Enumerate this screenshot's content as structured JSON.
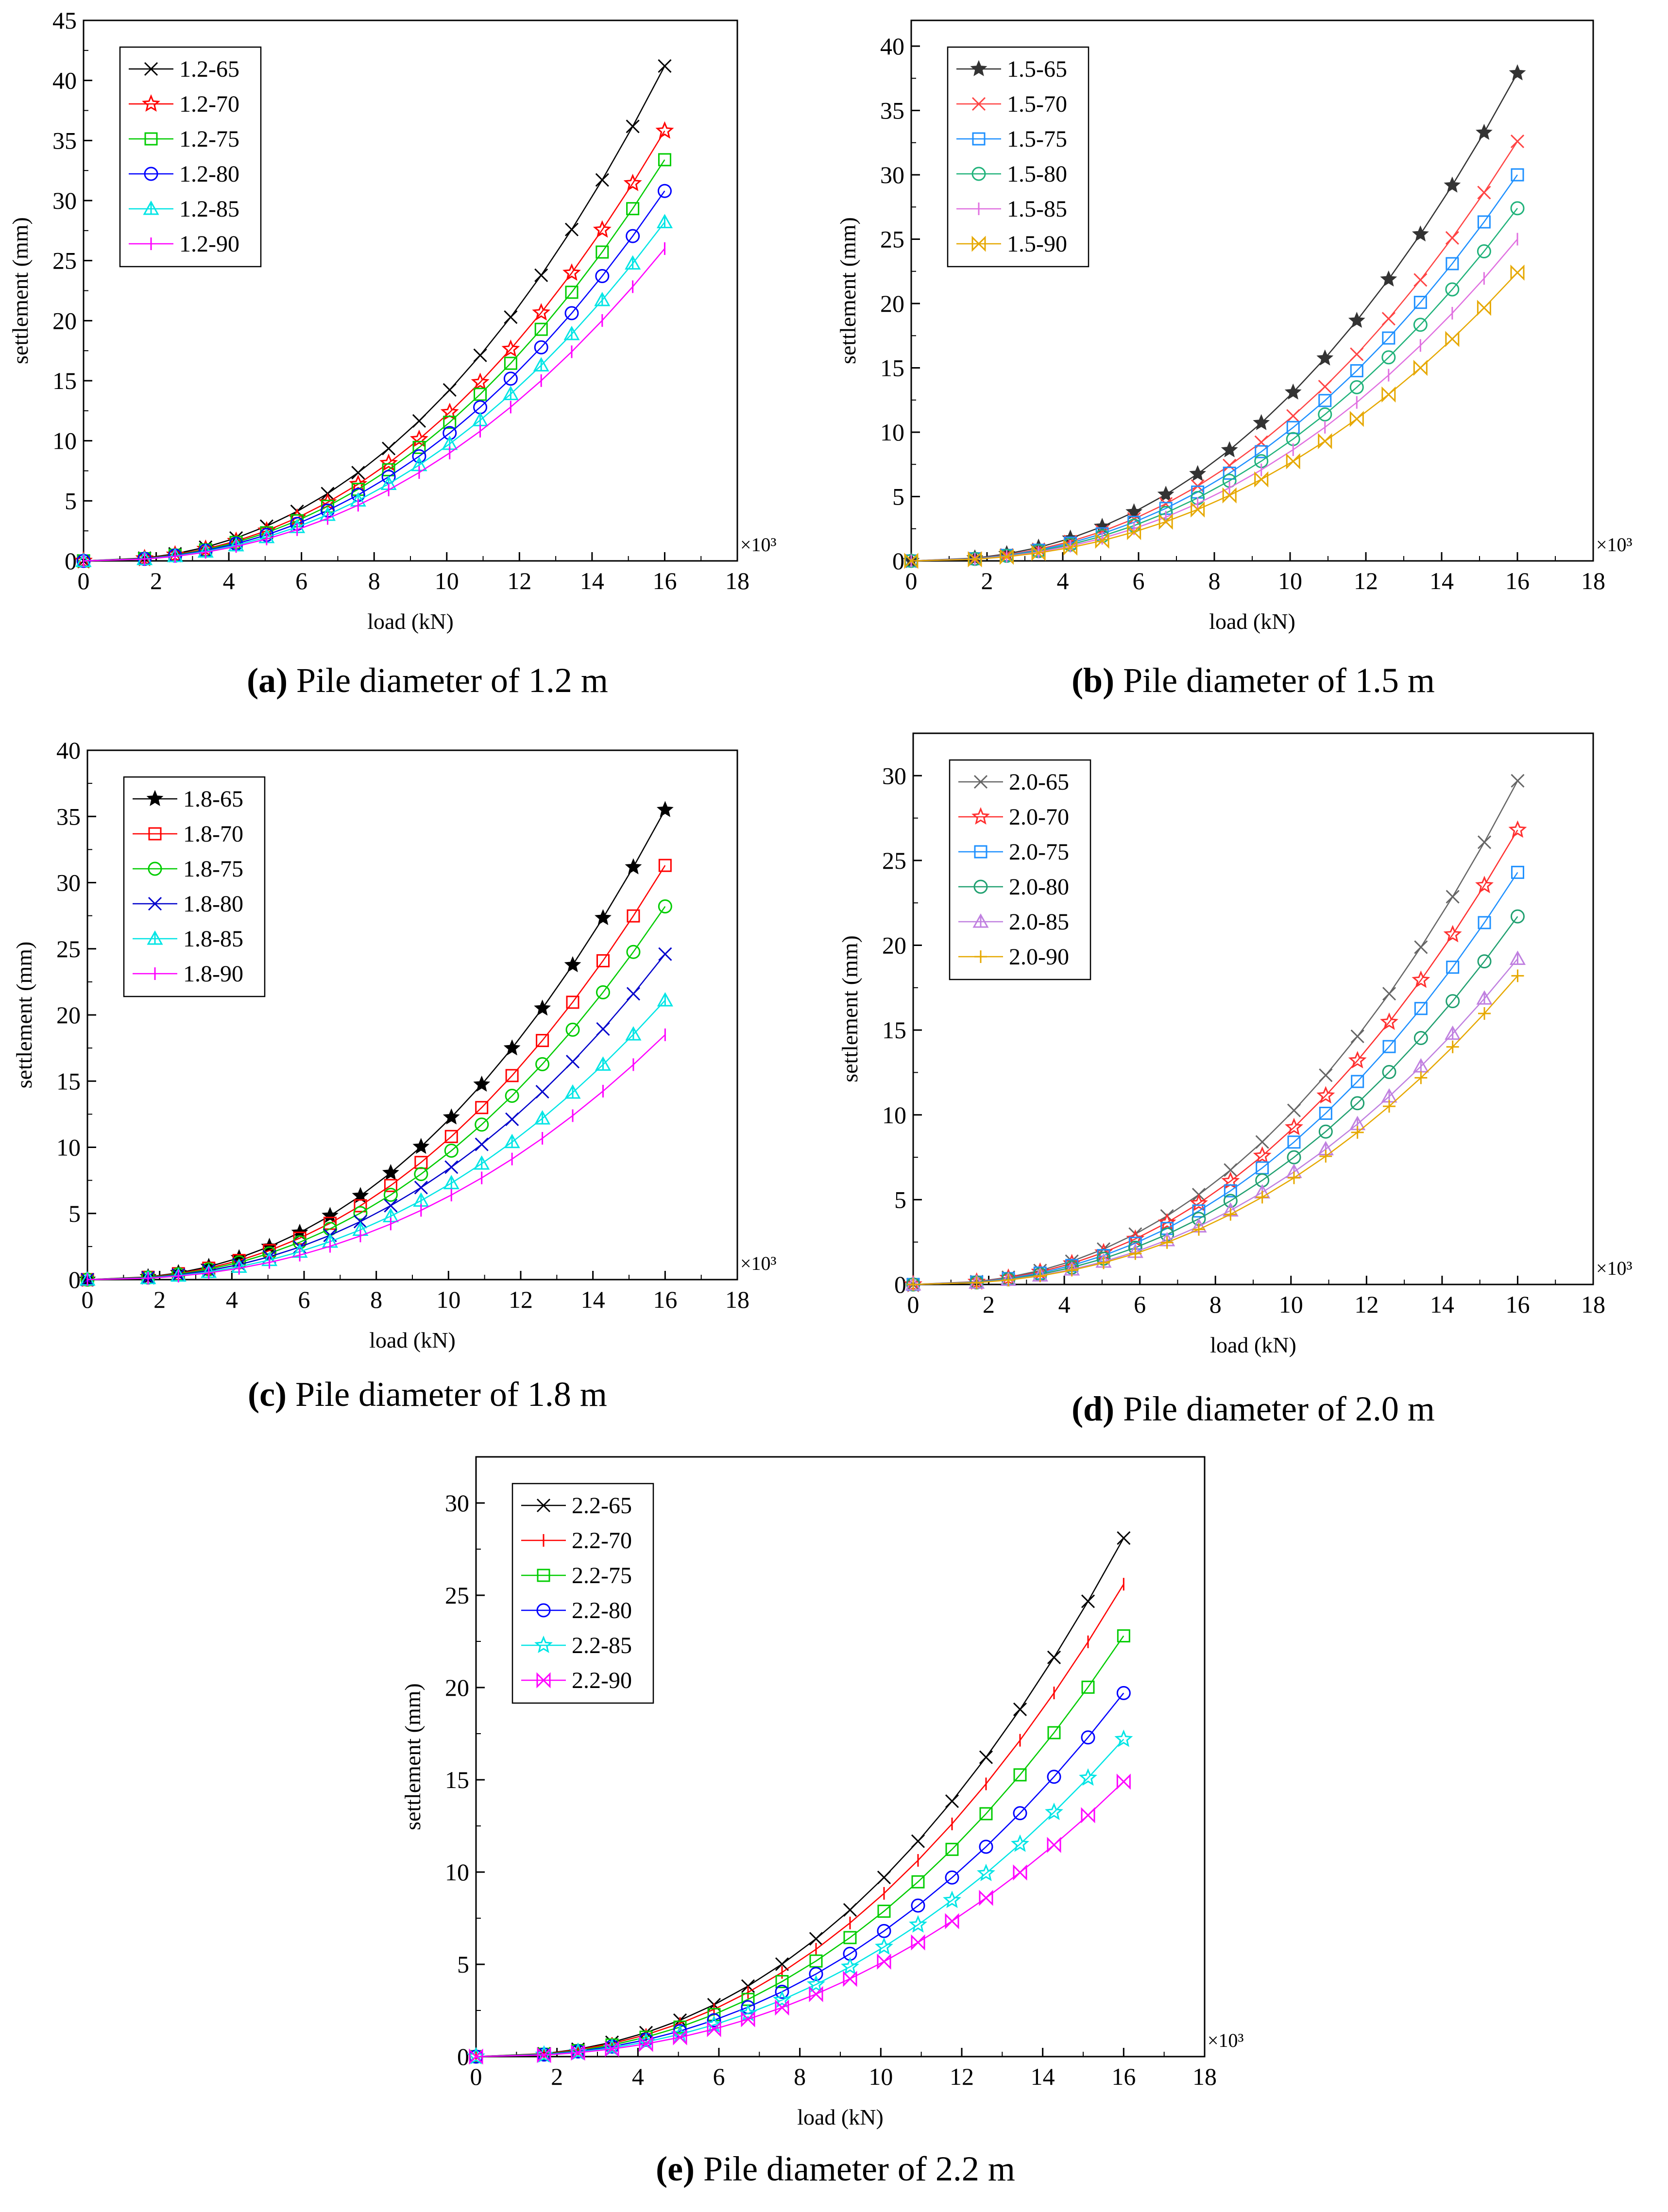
{
  "loads": [
    0,
    1.68,
    2.52,
    3.36,
    4.2,
    5.04,
    5.88,
    6.72,
    7.56,
    8.4,
    9.24,
    10.08,
    10.92,
    11.76,
    12.6,
    13.44,
    14.28,
    15.12,
    16.0
  ],
  "chart_data": [
    {
      "id": "a",
      "type": "line",
      "caption_letter": "a",
      "caption_text": " Pile diameter of 1.2 m",
      "xlabel": "load (kN)",
      "ylabel": "settlement (mm)",
      "multiplier": "×10³",
      "xlim": [
        0,
        18
      ],
      "xticks": [
        0,
        2,
        4,
        6,
        8,
        10,
        12,
        14,
        16,
        18
      ],
      "ylim": [
        0,
        45
      ],
      "yticks": [
        0,
        5,
        10,
        15,
        20,
        25,
        30,
        35,
        40,
        45
      ],
      "series": [
        {
          "name": "1.2-65",
          "color": "#000000",
          "marker": "x",
          "final": 41.2
        },
        {
          "name": "1.2-70",
          "color": "#ff0000",
          "marker": "star",
          "final": 35.8
        },
        {
          "name": "1.2-75",
          "color": "#00cc00",
          "marker": "square",
          "final": 33.4
        },
        {
          "name": "1.2-80",
          "color": "#0000ff",
          "marker": "circle",
          "final": 30.8
        },
        {
          "name": "1.2-85",
          "color": "#00e5e5",
          "marker": "triangle",
          "final": 28.2
        },
        {
          "name": "1.2-90",
          "color": "#ff00ff",
          "marker": "bar",
          "final": 26.0
        }
      ]
    },
    {
      "id": "b",
      "type": "line",
      "caption_letter": "b",
      "caption_text": " Pile diameter of 1.5 m",
      "xlabel": "load (kN)",
      "ylabel": "settlement (mm)",
      "multiplier": "×10³",
      "xlim": [
        0,
        18
      ],
      "xticks": [
        0,
        2,
        4,
        6,
        8,
        10,
        12,
        14,
        16,
        18
      ],
      "ylim": [
        0,
        42
      ],
      "yticks": [
        0,
        5,
        10,
        15,
        20,
        25,
        30,
        35,
        40
      ],
      "series": [
        {
          "name": "1.5-65",
          "color": "#333333",
          "marker": "filledstar",
          "final": 37.9
        },
        {
          "name": "1.5-70",
          "color": "#ff4444",
          "marker": "x",
          "final": 32.6
        },
        {
          "name": "1.5-75",
          "color": "#1e90ff",
          "marker": "square",
          "final": 30.0
        },
        {
          "name": "1.5-80",
          "color": "#20b27a",
          "marker": "circle",
          "final": 27.4
        },
        {
          "name": "1.5-85",
          "color": "#e070e0",
          "marker": "bar",
          "final": 25.0
        },
        {
          "name": "1.5-90",
          "color": "#e6a800",
          "marker": "bowtie",
          "final": 22.4
        }
      ]
    },
    {
      "id": "c",
      "type": "line",
      "caption_letter": "c",
      "caption_text": " Pile diameter of 1.8 m",
      "xlabel": "load (kN)",
      "ylabel": "settlement (mm)",
      "multiplier": "×10³",
      "xlim": [
        0,
        18
      ],
      "xticks": [
        0,
        2,
        4,
        6,
        8,
        10,
        12,
        14,
        16,
        18
      ],
      "ylim": [
        0,
        40
      ],
      "yticks": [
        0,
        5,
        10,
        15,
        20,
        25,
        30,
        35,
        40
      ],
      "series": [
        {
          "name": "1.8-65",
          "color": "#000000",
          "marker": "filledstar",
          "final": 35.5
        },
        {
          "name": "1.8-70",
          "color": "#ff0000",
          "marker": "square",
          "final": 31.3
        },
        {
          "name": "1.8-75",
          "color": "#00cc00",
          "marker": "circle",
          "final": 28.2
        },
        {
          "name": "1.8-80",
          "color": "#0000cc",
          "marker": "x",
          "final": 24.6
        },
        {
          "name": "1.8-85",
          "color": "#00e5e5",
          "marker": "triangle",
          "final": 21.1
        },
        {
          "name": "1.8-90",
          "color": "#ff00ff",
          "marker": "bar",
          "final": 18.5
        }
      ]
    },
    {
      "id": "d",
      "type": "line",
      "caption_letter": "d",
      "caption_text": " Pile diameter of 2.0 m",
      "xlabel": "load (kN)",
      "ylabel": "settlement (mm)",
      "multiplier": "×10³",
      "xlim": [
        0,
        18
      ],
      "xticks": [
        0,
        2,
        4,
        6,
        8,
        10,
        12,
        14,
        16,
        18
      ],
      "ylim": [
        0,
        32.5
      ],
      "yticks": [
        0,
        5,
        10,
        15,
        20,
        25,
        30
      ],
      "series": [
        {
          "name": "2.0-65",
          "color": "#666666",
          "marker": "x",
          "final": 29.7
        },
        {
          "name": "2.0-70",
          "color": "#ff3030",
          "marker": "star",
          "final": 26.8
        },
        {
          "name": "2.0-75",
          "color": "#1e90ff",
          "marker": "square",
          "final": 24.3
        },
        {
          "name": "2.0-80",
          "color": "#20a070",
          "marker": "circle",
          "final": 21.7
        },
        {
          "name": "2.0-85",
          "color": "#c080e0",
          "marker": "triangle",
          "final": 19.2
        },
        {
          "name": "2.0-90",
          "color": "#e6a800",
          "marker": "plus",
          "final": 18.2
        }
      ]
    },
    {
      "id": "e",
      "type": "line",
      "caption_letter": "e",
      "caption_text": " Pile diameter of 2.2 m",
      "xlabel": "load (kN)",
      "ylabel": "settlement (mm)",
      "multiplier": "×10³",
      "xlim": [
        0,
        18
      ],
      "xticks": [
        0,
        2,
        4,
        6,
        8,
        10,
        12,
        14,
        16,
        18
      ],
      "ylim": [
        0,
        32.5
      ],
      "yticks": [
        0,
        5,
        10,
        15,
        20,
        25,
        30
      ],
      "series": [
        {
          "name": "2.2-65",
          "color": "#000000",
          "marker": "x",
          "final": 28.1
        },
        {
          "name": "2.2-70",
          "color": "#ff0000",
          "marker": "bar",
          "final": 25.6
        },
        {
          "name": "2.2-75",
          "color": "#00cc00",
          "marker": "square",
          "final": 22.8
        },
        {
          "name": "2.2-80",
          "color": "#0000ff",
          "marker": "circle",
          "final": 19.7
        },
        {
          "name": "2.2-85",
          "color": "#00e5e5",
          "marker": "star",
          "final": 17.2
        },
        {
          "name": "2.2-90",
          "color": "#ff00ff",
          "marker": "bowtie",
          "final": 14.9
        }
      ]
    }
  ]
}
